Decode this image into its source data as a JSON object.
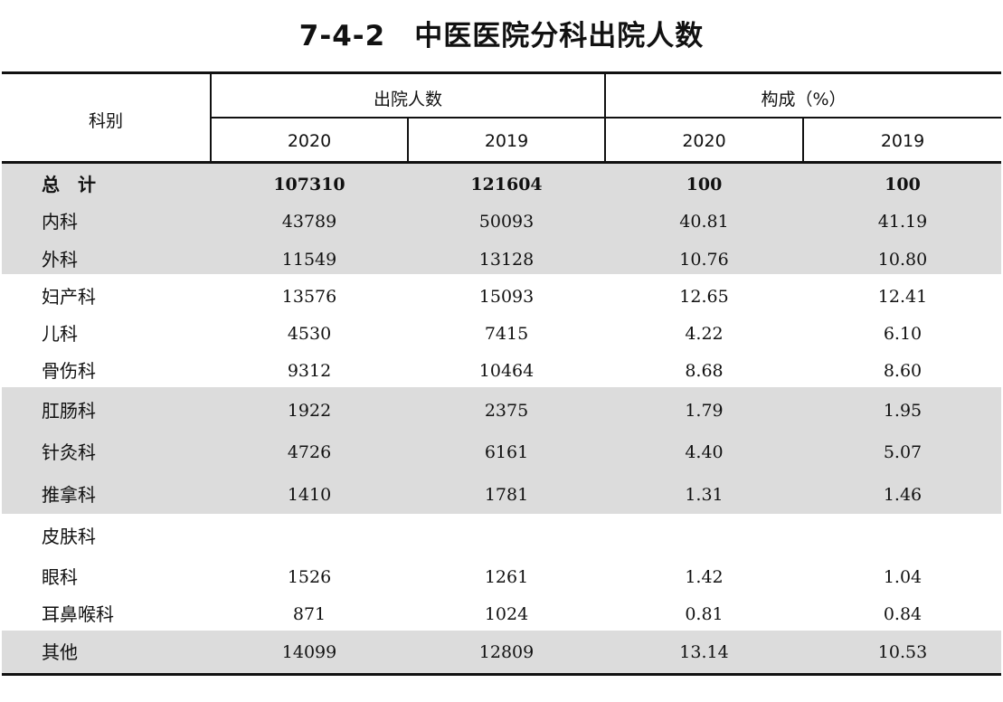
{
  "title": "7-4-2　中医医院分科出院人数",
  "header": {
    "category": "科别",
    "group_discharge": "出院人数",
    "group_composition": "构成（%）",
    "years": [
      "2020",
      "2019",
      "2020",
      "2019"
    ]
  },
  "rows": [
    {
      "label": "总　计",
      "values": [
        "107310",
        "121604",
        "100",
        "100"
      ],
      "bold": true
    },
    {
      "label": "内科",
      "values": [
        "43789",
        "50093",
        "40.81",
        "41.19"
      ]
    },
    {
      "label": "外科",
      "values": [
        "11549",
        "13128",
        "10.76",
        "10.80"
      ]
    },
    {
      "label": "妇产科",
      "values": [
        "13576",
        "15093",
        "12.65",
        "12.41"
      ]
    },
    {
      "label": "儿科",
      "values": [
        "4530",
        "7415",
        "4.22",
        "6.10"
      ]
    },
    {
      "label": "骨伤科",
      "values": [
        "9312",
        "10464",
        "8.68",
        "8.60"
      ]
    },
    {
      "label": "肛肠科",
      "values": [
        "1922",
        "2375",
        "1.79",
        "1.95"
      ]
    },
    {
      "label": "针灸科",
      "values": [
        "4726",
        "6161",
        "4.40",
        "5.07"
      ]
    },
    {
      "label": "推拿科",
      "values": [
        "1410",
        "1781",
        "1.31",
        "1.46"
      ]
    },
    {
      "label": "皮肤科",
      "values": [
        "",
        "",
        "",
        ""
      ]
    },
    {
      "label": "眼科",
      "values": [
        "1526",
        "1261",
        "1.42",
        "1.04"
      ]
    },
    {
      "label": "耳鼻喉科",
      "values": [
        "871",
        "1024",
        "0.81",
        "0.84"
      ]
    },
    {
      "label": "其他",
      "values": [
        "14099",
        "12809",
        "13.14",
        "10.53"
      ]
    }
  ]
}
